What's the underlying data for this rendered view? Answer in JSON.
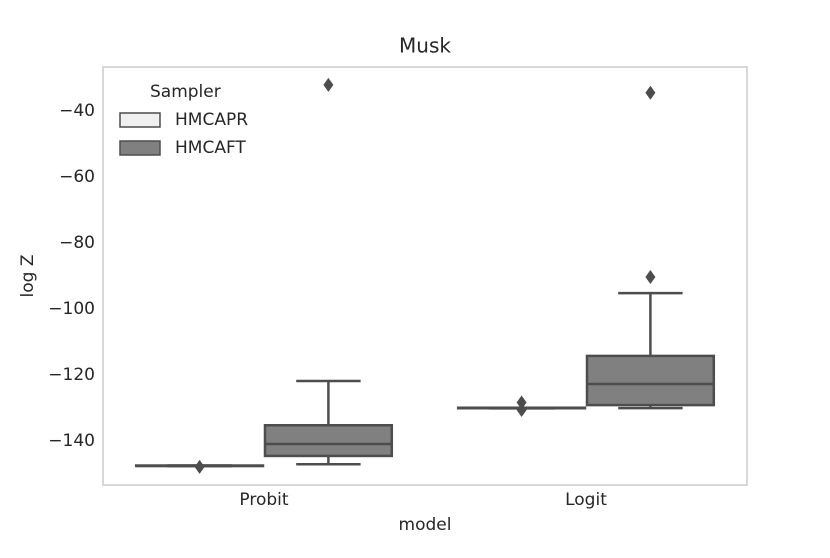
{
  "chart_data": {
    "type": "box",
    "title": "Musk",
    "x_label": "model",
    "y_label": "log Z",
    "categories": [
      "Probit",
      "Logit"
    ],
    "legend_title": "Sampler",
    "legend_position": "upper left",
    "ylim": [
      -153.3,
      -26.7
    ],
    "yticks": [
      {
        "value": -40,
        "label": "−40"
      },
      {
        "value": -60,
        "label": "−60"
      },
      {
        "value": -80,
        "label": "−80"
      },
      {
        "value": -100,
        "label": "−100"
      },
      {
        "value": -120,
        "label": "−120"
      },
      {
        "value": -140,
        "label": "−140"
      }
    ],
    "grid": false,
    "series": [
      {
        "name": "HMCAPR",
        "color": "#f0f0f0",
        "stats": [
          {
            "min": -147.6,
            "q1": -147.5,
            "median": -147.5,
            "q3": -147.4,
            "max": -147.4,
            "outliers": [
              -147.8
            ]
          },
          {
            "min": -130.1,
            "q1": -130.0,
            "median": -130.0,
            "q3": -129.9,
            "max": -129.9,
            "outliers": [
              -128.3,
              -130.6
            ]
          }
        ]
      },
      {
        "name": "HMCAFT",
        "color": "#808080",
        "stats": [
          {
            "min": -147.0,
            "q1": -144.5,
            "median": -140.9,
            "q3": -135.2,
            "max": -121.8,
            "outliers": [
              -32.1
            ]
          },
          {
            "min": -130.0,
            "q1": -129.1,
            "median": -122.7,
            "q3": -114.2,
            "max": -95.2,
            "outliers": [
              -34.5,
              -90.3
            ]
          }
        ]
      }
    ]
  }
}
